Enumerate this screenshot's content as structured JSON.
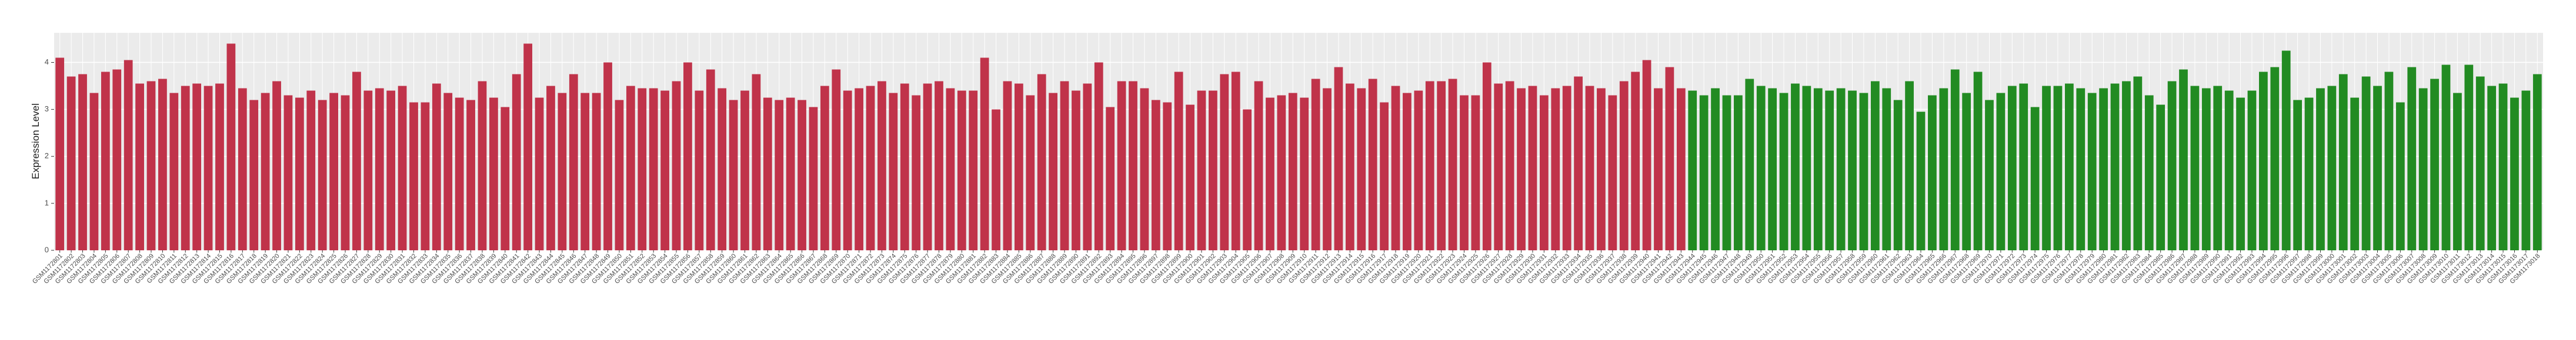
{
  "chart_data": {
    "type": "bar",
    "y_label": "Expression Level",
    "ylim": [
      0,
      4.63
    ],
    "yticks": [
      0,
      1,
      2,
      3,
      4
    ],
    "grid": true,
    "categories": [
      "GSM1172801",
      "GSM1172802",
      "GSM1172803",
      "GSM1172804",
      "GSM1172805",
      "GSM1172806",
      "GSM1172807",
      "GSM1172808",
      "GSM1172809",
      "GSM1172810",
      "GSM1172811",
      "GSM1172812",
      "GSM1172813",
      "GSM1172814",
      "GSM1172815",
      "GSM1172816",
      "GSM1172817",
      "GSM1172818",
      "GSM1172819",
      "GSM1172820",
      "GSM1172821",
      "GSM1172822",
      "GSM1172823",
      "GSM1172824",
      "GSM1172825",
      "GSM1172826",
      "GSM1172827",
      "GSM1172828",
      "GSM1172829",
      "GSM1172830",
      "GSM1172831",
      "GSM1172832",
      "GSM1172833",
      "GSM1172834",
      "GSM1172835",
      "GSM1172836",
      "GSM1172837",
      "GSM1172838",
      "GSM1172839",
      "GSM1172840",
      "GSM1172841",
      "GSM1172842",
      "GSM1172843",
      "GSM1172844",
      "GSM1172845",
      "GSM1172846",
      "GSM1172847",
      "GSM1172848",
      "GSM1172849",
      "GSM1172850",
      "GSM1172851",
      "GSM1172852",
      "GSM1172853",
      "GSM1172854",
      "GSM1172855",
      "GSM1172856",
      "GSM1172857",
      "GSM1172858",
      "GSM1172859",
      "GSM1172860",
      "GSM1172861",
      "GSM1172862",
      "GSM1172863",
      "GSM1172864",
      "GSM1172865",
      "GSM1172866",
      "GSM1172867",
      "GSM1172868",
      "GSM1172869",
      "GSM1172870",
      "GSM1172871",
      "GSM1172872",
      "GSM1172873",
      "GSM1172874",
      "GSM1172875",
      "GSM1172876",
      "GSM1172877",
      "GSM1172878",
      "GSM1172879",
      "GSM1172880",
      "GSM1172881",
      "GSM1172882",
      "GSM1172883",
      "GSM1172884",
      "GSM1172885",
      "GSM1172886",
      "GSM1172887",
      "GSM1172888",
      "GSM1172889",
      "GSM1172890",
      "GSM1172891",
      "GSM1172892",
      "GSM1172893",
      "GSM1172894",
      "GSM1172895",
      "GSM1172896",
      "GSM1172897",
      "GSM1172898",
      "GSM1172899",
      "GSM1172900",
      "GSM1172901",
      "GSM1172902",
      "GSM1172903",
      "GSM1172904",
      "GSM1172905",
      "GSM1172906",
      "GSM1172907",
      "GSM1172908",
      "GSM1172909",
      "GSM1172910",
      "GSM1172911",
      "GSM1172912",
      "GSM1172913",
      "GSM1172914",
      "GSM1172915",
      "GSM1172916",
      "GSM1172917",
      "GSM1172918",
      "GSM1172919",
      "GSM1172920",
      "GSM1172921",
      "GSM1172922",
      "GSM1172923",
      "GSM1172924",
      "GSM1172925",
      "GSM1172926",
      "GSM1172927",
      "GSM1172928",
      "GSM1172929",
      "GSM1172930",
      "GSM1172931",
      "GSM1172932",
      "GSM1172933",
      "GSM1172934",
      "GSM1172935",
      "GSM1172936",
      "GSM1172937",
      "GSM1172938",
      "GSM1172939",
      "GSM1172940",
      "GSM1172941",
      "GSM1172942",
      "GSM1172943",
      "GSM1172944",
      "GSM1172945",
      "GSM1172946",
      "GSM1172947",
      "GSM1172948",
      "GSM1172949",
      "GSM1172950",
      "GSM1172951",
      "GSM1172952",
      "GSM1172953",
      "GSM1172954",
      "GSM1172955",
      "GSM1172956",
      "GSM1172957",
      "GSM1172958",
      "GSM1172959",
      "GSM1172960",
      "GSM1172961",
      "GSM1172962",
      "GSM1172963",
      "GSM1172964",
      "GSM1172965",
      "GSM1172966",
      "GSM1172967",
      "GSM1172968",
      "GSM1172969",
      "GSM1172970",
      "GSM1172971",
      "GSM1172972",
      "GSM1172973",
      "GSM1172974",
      "GSM1172975",
      "GSM1172976",
      "GSM1172977",
      "GSM1172978",
      "GSM1172979",
      "GSM1172980",
      "GSM1172981",
      "GSM1172982",
      "GSM1172983",
      "GSM1172984",
      "GSM1172985",
      "GSM1172986",
      "GSM1172987",
      "GSM1172988",
      "GSM1172989",
      "GSM1172990",
      "GSM1172991",
      "GSM1172992",
      "GSM1172993",
      "GSM1172994",
      "GSM1172995",
      "GSM1172996",
      "GSM1172997",
      "GSM1172998",
      "GSM1172999",
      "GSM1173000",
      "GSM1173001",
      "GSM1173002",
      "GSM1173003",
      "GSM1173004",
      "GSM1173005",
      "GSM1173006",
      "GSM1173007",
      "GSM1173008",
      "GSM1173009",
      "GSM1173010",
      "GSM1173011",
      "GSM1173012",
      "GSM1173013",
      "GSM1173014",
      "GSM1173015",
      "GSM1173016",
      "GSM1173017",
      "GSM1173018"
    ],
    "series": [
      {
        "color": "#c0334a",
        "values": [
          4.1,
          3.7,
          3.75,
          3.35,
          3.8,
          3.85,
          4.05,
          3.55,
          3.6,
          3.65,
          3.35,
          3.5,
          3.55,
          3.5,
          3.55,
          4.4,
          3.45,
          3.2,
          3.35,
          3.6,
          3.3,
          3.25,
          3.4,
          3.2,
          3.35,
          3.3,
          3.8,
          3.4,
          3.45,
          3.4,
          3.5,
          3.15,
          3.15,
          3.55,
          3.35,
          3.25,
          3.2,
          3.6,
          3.25,
          3.05,
          3.75,
          4.4,
          3.25,
          3.5,
          3.35,
          3.75,
          3.35,
          3.35,
          4.0,
          3.2,
          3.5,
          3.45,
          3.45,
          3.4,
          3.6,
          4.0,
          3.4,
          3.85,
          3.45,
          3.2,
          3.4,
          3.75,
          3.25,
          3.2,
          3.25,
          3.2,
          3.05,
          3.5,
          3.85,
          3.4,
          3.45,
          3.5,
          3.6,
          3.35,
          3.55,
          3.3,
          3.55,
          3.6,
          3.45,
          3.4,
          3.4,
          4.1,
          3.0,
          3.6,
          3.55,
          3.3,
          3.75,
          3.35,
          3.6,
          3.4,
          3.55,
          4.0,
          3.05,
          3.6,
          3.6,
          3.45,
          3.2,
          3.15,
          3.8,
          3.1,
          3.4,
          3.4,
          3.75,
          3.8,
          3.0,
          3.6,
          3.25,
          3.3,
          3.35,
          3.25,
          3.65,
          3.45,
          3.9,
          3.55,
          3.45,
          3.65,
          3.15,
          3.5,
          3.35,
          3.4,
          3.6,
          3.6,
          3.65,
          3.3,
          3.3,
          4.0,
          3.55,
          3.6,
          3.45,
          3.5,
          3.3,
          3.45,
          3.5,
          3.7,
          3.5,
          3.45,
          3.3,
          3.6,
          3.8,
          4.05,
          3.45,
          3.9,
          3.45,
          null,
          null,
          null,
          null,
          null,
          null,
          null,
          null,
          null,
          null,
          null,
          null,
          null,
          null,
          null,
          null,
          null,
          null,
          null,
          null,
          null,
          null,
          null,
          null,
          null,
          null,
          null,
          null,
          null,
          null,
          null,
          null,
          null,
          null,
          null,
          null,
          null,
          null,
          null,
          null,
          null,
          null,
          null,
          null,
          null,
          null,
          null,
          null,
          null,
          null,
          null,
          null,
          null,
          null,
          null,
          null,
          null,
          null,
          null,
          null,
          null,
          null,
          null,
          null,
          null,
          null,
          null,
          null,
          null,
          null,
          null,
          null,
          null,
          null,
          null
        ]
      },
      {
        "color": "#228b22",
        "values": [
          null,
          null,
          null,
          null,
          null,
          null,
          null,
          null,
          null,
          null,
          null,
          null,
          null,
          null,
          null,
          null,
          null,
          null,
          null,
          null,
          null,
          null,
          null,
          null,
          null,
          null,
          null,
          null,
          null,
          null,
          null,
          null,
          null,
          null,
          null,
          null,
          null,
          null,
          null,
          null,
          null,
          null,
          null,
          null,
          null,
          null,
          null,
          null,
          null,
          null,
          null,
          null,
          null,
          null,
          null,
          null,
          null,
          null,
          null,
          null,
          null,
          null,
          null,
          null,
          null,
          null,
          null,
          null,
          null,
          null,
          null,
          null,
          null,
          null,
          null,
          null,
          null,
          null,
          null,
          null,
          null,
          null,
          null,
          null,
          null,
          null,
          null,
          null,
          null,
          null,
          null,
          null,
          null,
          null,
          null,
          null,
          null,
          null,
          null,
          null,
          null,
          null,
          null,
          null,
          null,
          null,
          null,
          null,
          null,
          null,
          null,
          null,
          null,
          null,
          null,
          null,
          null,
          null,
          null,
          null,
          null,
          null,
          null,
          null,
          null,
          null,
          null,
          null,
          null,
          null,
          null,
          null,
          null,
          null,
          null,
          null,
          null,
          null,
          null,
          null,
          null,
          null,
          null,
          3.4,
          3.3,
          3.45,
          3.3,
          3.3,
          3.65,
          3.5,
          3.45,
          3.35,
          3.55,
          3.5,
          3.45,
          3.4,
          3.45,
          3.4,
          3.35,
          3.6,
          3.45,
          3.2,
          3.6,
          2.95,
          3.3,
          3.45,
          3.85,
          3.35,
          3.8,
          3.2,
          3.35,
          3.5,
          3.55,
          3.05,
          3.5,
          3.5,
          3.55,
          3.45,
          3.35,
          3.45,
          3.55,
          3.6,
          3.7,
          3.3,
          3.1,
          3.6,
          3.85,
          3.5,
          3.45,
          3.5,
          3.4,
          3.25,
          3.4,
          3.8,
          3.9,
          4.25,
          3.2,
          3.25,
          3.45,
          3.5,
          3.75,
          3.25,
          3.7,
          3.5,
          3.8,
          3.15,
          3.9,
          3.45,
          3.65,
          3.95,
          3.35,
          3.95,
          3.7,
          3.5,
          3.55,
          3.25,
          3.4,
          3.75
        ]
      }
    ]
  }
}
